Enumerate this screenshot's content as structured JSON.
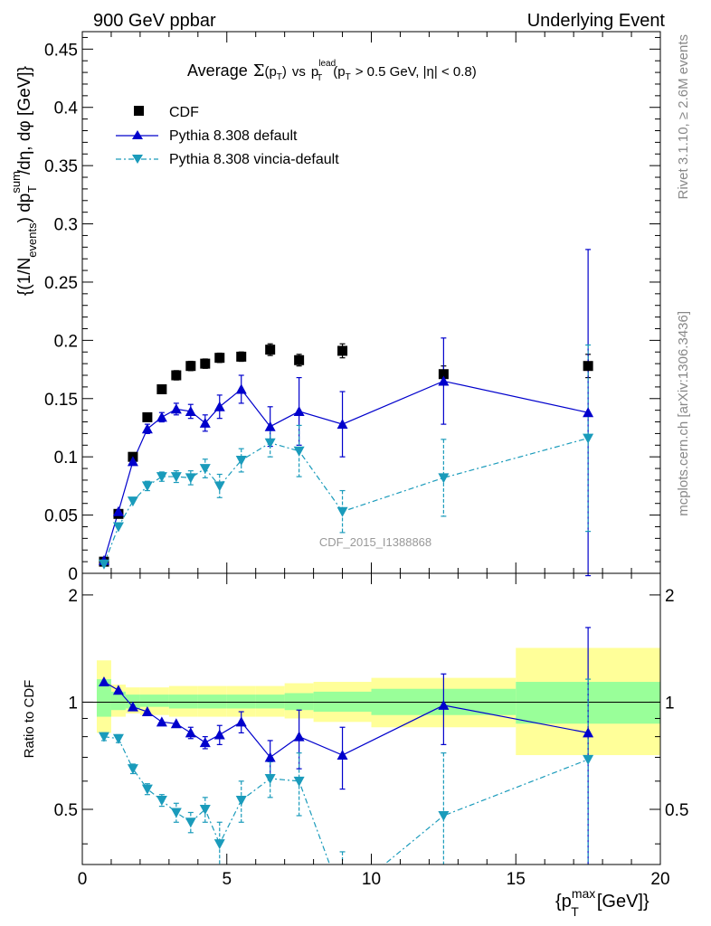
{
  "header": {
    "left": "900 GeV ppbar",
    "right": "Underlying Event"
  },
  "side_text": {
    "rivet": "Rivet 3.1.10, ≥ 2.6M events",
    "mcplots": "mcplots.cern.ch [arXiv:1306.3436]"
  },
  "chart_data": [
    {
      "type": "scatter",
      "title": "Average Σ(pT) vs pT lead (pT > 0.5 GeV, |η| < 0.8)",
      "title_parts": {
        "prefix": "Average",
        "sigma": "Σ",
        "ptT": "(p",
        "ptT_sub": "T",
        "ptT_close": ")",
        "vs": "vs",
        "p": "p",
        "lead_sup": "lead",
        "lead_sub": "T",
        "cut": "(p",
        "cut_sub": "T",
        "cut_rest": "> 0.5 GeV, |η| < 0.8)"
      },
      "ylabel": "{(1/N events) dp T sum/dη, dφ [GeV]}",
      "ylabel_parts": {
        "a": "{(1/N",
        "a_sub": "events",
        "b": ") dp",
        "b_sup": "sum",
        "b_sub": "T",
        "c": "/dη, dφ [GeV]}"
      },
      "analysis_id": "CDF_2015_I1388868",
      "xlim": [
        0,
        20
      ],
      "ylim": [
        0,
        0.465
      ],
      "yticks": [
        "0",
        "0.05",
        "0.1",
        "0.15",
        "0.2",
        "0.25",
        "0.3",
        "0.35",
        "0.4",
        "0.45"
      ],
      "legend_position": "top-left",
      "series": [
        {
          "name": "CDF",
          "marker": "square",
          "color": "#000000",
          "x": [
            0.75,
            1.25,
            1.75,
            2.25,
            2.75,
            3.25,
            3.75,
            4.25,
            4.75,
            5.5,
            6.5,
            7.5,
            9.0,
            12.5,
            17.5
          ],
          "y": [
            0.01,
            0.051,
            0.1,
            0.134,
            0.158,
            0.17,
            0.178,
            0.18,
            0.185,
            0.186,
            0.192,
            0.183,
            0.191,
            0.171,
            0.178
          ],
          "yerr": [
            0.001,
            0.002,
            0.003,
            0.003,
            0.003,
            0.004,
            0.004,
            0.004,
            0.004,
            0.004,
            0.005,
            0.005,
            0.006,
            0.007,
            0.01
          ]
        },
        {
          "name": "Pythia 8.308 default",
          "marker": "triangle-up",
          "color": "#0000cc",
          "linestyle": "solid",
          "x": [
            0.75,
            1.25,
            1.75,
            2.25,
            2.75,
            3.25,
            3.75,
            4.25,
            4.75,
            5.5,
            6.5,
            7.5,
            9.0,
            12.5,
            17.5
          ],
          "y": [
            0.011,
            0.053,
            0.096,
            0.124,
            0.134,
            0.141,
            0.139,
            0.129,
            0.143,
            0.158,
            0.126,
            0.139,
            0.128,
            0.165,
            0.138
          ],
          "yerr": [
            0.001,
            0.002,
            0.003,
            0.004,
            0.004,
            0.005,
            0.006,
            0.007,
            0.01,
            0.012,
            0.017,
            0.029,
            0.028,
            0.037,
            0.14
          ]
        },
        {
          "name": "Pythia 8.308 vincia-default",
          "marker": "triangle-down",
          "color": "#1a9bbb",
          "linestyle": "dash-dot",
          "x": [
            0.75,
            1.25,
            1.75,
            2.25,
            2.75,
            3.25,
            3.75,
            4.25,
            4.75,
            5.5,
            6.5,
            7.5,
            9.0,
            12.5,
            17.5
          ],
          "y": [
            0.008,
            0.04,
            0.062,
            0.075,
            0.083,
            0.083,
            0.082,
            0.09,
            0.075,
            0.097,
            0.112,
            0.105,
            0.053,
            0.082,
            0.116
          ],
          "yerr": [
            0.001,
            0.002,
            0.003,
            0.004,
            0.004,
            0.005,
            0.006,
            0.008,
            0.01,
            0.01,
            0.012,
            0.022,
            0.018,
            0.033,
            0.08
          ]
        }
      ]
    },
    {
      "type": "scatter",
      "ylabel": "Ratio to CDF",
      "xlabel": "{p T max [GeV]}",
      "xlabel_parts": {
        "a": "{p",
        "sup": "max",
        "sub": "T",
        "b": "[GeV]}"
      },
      "xlim": [
        0,
        20
      ],
      "ylim": [
        0.35,
        2.3
      ],
      "xticks": [
        "0",
        "5",
        "10",
        "15",
        "20"
      ],
      "yticks": [
        "0.5",
        "1",
        "2"
      ],
      "bands": [
        {
          "x0": 0.5,
          "x1": 1.0,
          "stat_lo": 0.91,
          "stat_hi": 1.16,
          "tot_lo": 0.82,
          "tot_hi": 1.31
        },
        {
          "x0": 1.0,
          "x1": 1.5,
          "stat_lo": 0.95,
          "stat_hi": 1.07,
          "tot_lo": 0.91,
          "tot_hi": 1.12
        },
        {
          "x0": 1.5,
          "x1": 2.0,
          "stat_lo": 0.96,
          "stat_hi": 1.05,
          "tot_lo": 0.93,
          "tot_hi": 1.1
        },
        {
          "x0": 2.0,
          "x1": 3.0,
          "stat_lo": 0.97,
          "stat_hi": 1.05,
          "tot_lo": 0.92,
          "tot_hi": 1.1
        },
        {
          "x0": 3.0,
          "x1": 4.0,
          "stat_lo": 0.96,
          "stat_hi": 1.05,
          "tot_lo": 0.91,
          "tot_hi": 1.11
        },
        {
          "x0": 4.0,
          "x1": 5.0,
          "stat_lo": 0.96,
          "stat_hi": 1.05,
          "tot_lo": 0.91,
          "tot_hi": 1.11
        },
        {
          "x0": 5.0,
          "x1": 6.0,
          "stat_lo": 0.96,
          "stat_hi": 1.05,
          "tot_lo": 0.91,
          "tot_hi": 1.11
        },
        {
          "x0": 6.0,
          "x1": 7.0,
          "stat_lo": 0.96,
          "stat_hi": 1.05,
          "tot_lo": 0.91,
          "tot_hi": 1.11
        },
        {
          "x0": 7.0,
          "x1": 8.0,
          "stat_lo": 0.95,
          "stat_hi": 1.06,
          "tot_lo": 0.9,
          "tot_hi": 1.13
        },
        {
          "x0": 8.0,
          "x1": 10.0,
          "stat_lo": 0.94,
          "stat_hi": 1.07,
          "tot_lo": 0.88,
          "tot_hi": 1.14
        },
        {
          "x0": 10.0,
          "x1": 15.0,
          "stat_lo": 0.92,
          "stat_hi": 1.09,
          "tot_lo": 0.85,
          "tot_hi": 1.17
        },
        {
          "x0": 15.0,
          "x1": 20.0,
          "stat_lo": 0.87,
          "stat_hi": 1.14,
          "tot_lo": 0.71,
          "tot_hi": 1.42
        }
      ],
      "series": [
        {
          "name": "Pythia 8.308 default",
          "x": [
            0.75,
            1.25,
            1.75,
            2.25,
            2.75,
            3.25,
            3.75,
            4.25,
            4.75,
            5.5,
            6.5,
            7.5,
            9.0,
            12.5,
            17.5
          ],
          "y": [
            1.14,
            1.08,
            0.97,
            0.94,
            0.88,
            0.87,
            0.82,
            0.77,
            0.81,
            0.88,
            0.7,
            0.8,
            0.71,
            0.98,
            0.82
          ],
          "yerr": [
            0.02,
            0.02,
            0.02,
            0.02,
            0.02,
            0.02,
            0.03,
            0.03,
            0.05,
            0.06,
            0.08,
            0.15,
            0.14,
            0.22,
            0.8
          ]
        },
        {
          "name": "Pythia 8.308 vincia-default",
          "x": [
            0.75,
            1.25,
            1.75,
            2.25,
            2.75,
            3.25,
            3.75,
            4.25,
            4.75,
            5.5,
            6.5,
            7.5,
            9.0,
            12.5,
            17.5
          ],
          "y": [
            0.8,
            0.79,
            0.65,
            0.57,
            0.53,
            0.49,
            0.46,
            0.5,
            0.4,
            0.53,
            0.61,
            0.6,
            0.28,
            0.48,
            0.69
          ],
          "yerr": [
            0.02,
            0.02,
            0.02,
            0.02,
            0.02,
            0.03,
            0.03,
            0.04,
            0.06,
            0.07,
            0.07,
            0.12,
            0.1,
            0.24,
            0.47
          ]
        }
      ]
    }
  ]
}
